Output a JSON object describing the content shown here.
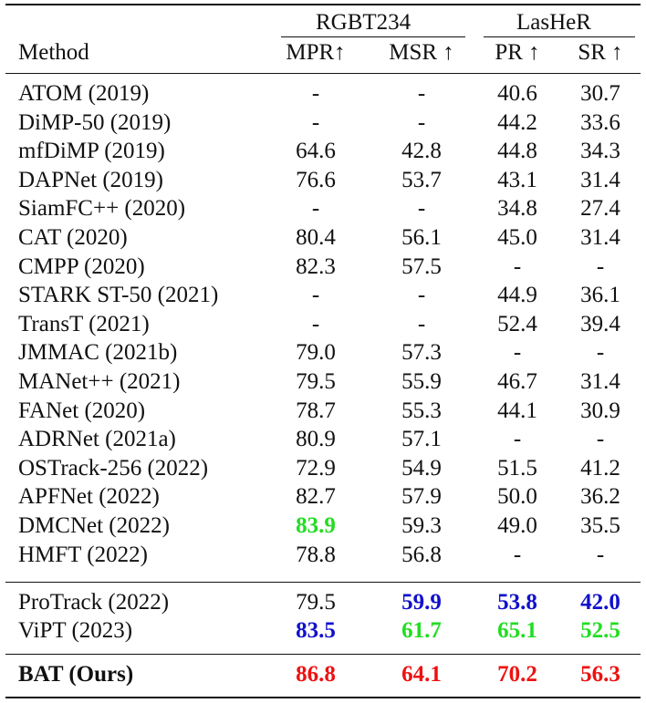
{
  "colors": {
    "red": "#ee1111",
    "green": "#22dd22",
    "blue": "#1111cc",
    "black": "#111111"
  },
  "header": {
    "method_label": "Method",
    "group_rgbt": "RGBT234",
    "group_lasher": "LasHeR",
    "col_mpr": "MPR↑",
    "col_msr": "MSR ↑",
    "col_pr": "PR ↑",
    "col_sr": "SR ↑"
  },
  "rows": [
    {
      "method": "ATOM (2019)",
      "mpr": "-",
      "msr": "-",
      "pr": "40.6",
      "sr": "30.7"
    },
    {
      "method": "DiMP-50 (2019)",
      "mpr": "-",
      "msr": "-",
      "pr": "44.2",
      "sr": "33.6"
    },
    {
      "method": "mfDiMP (2019)",
      "mpr": "64.6",
      "msr": "42.8",
      "pr": "44.8",
      "sr": "34.3"
    },
    {
      "method": "DAPNet (2019)",
      "mpr": "76.6",
      "msr": "53.7",
      "pr": "43.1",
      "sr": "31.4"
    },
    {
      "method": "SiamFC++ (2020)",
      "mpr": "-",
      "msr": "-",
      "pr": "34.8",
      "sr": "27.4"
    },
    {
      "method": "CAT (2020)",
      "mpr": "80.4",
      "msr": "56.1",
      "pr": "45.0",
      "sr": "31.4"
    },
    {
      "method": "CMPP (2020)",
      "mpr": "82.3",
      "msr": "57.5",
      "pr": "-",
      "sr": "-"
    },
    {
      "method": "STARK ST-50 (2021)",
      "mpr": "-",
      "msr": "-",
      "pr": "44.9",
      "sr": "36.1"
    },
    {
      "method": "TransT (2021)",
      "mpr": "-",
      "msr": "-",
      "pr": "52.4",
      "sr": "39.4"
    },
    {
      "method": "JMMAC (2021b)",
      "mpr": "79.0",
      "msr": "57.3",
      "pr": "-",
      "sr": "-"
    },
    {
      "method": "MANet++ (2021)",
      "mpr": "79.5",
      "msr": "55.9",
      "pr": "46.7",
      "sr": "31.4"
    },
    {
      "method": "FANet (2020)",
      "mpr": "78.7",
      "msr": "55.3",
      "pr": "44.1",
      "sr": "30.9"
    },
    {
      "method": "ADRNet (2021a)",
      "mpr": "80.9",
      "msr": "57.1",
      "pr": "-",
      "sr": "-"
    },
    {
      "method": "OSTrack-256 (2022)",
      "mpr": "72.9",
      "msr": "54.9",
      "pr": "51.5",
      "sr": "41.2"
    },
    {
      "method": "APFNet (2022)",
      "mpr": "82.7",
      "msr": "57.9",
      "pr": "50.0",
      "sr": "36.2"
    },
    {
      "method": "DMCNet (2022)",
      "mpr": "83.9",
      "msr": "59.3",
      "pr": "49.0",
      "sr": "35.5",
      "mpr_style": "green"
    },
    {
      "method": "HMFT (2022)",
      "mpr": "78.8",
      "msr": "56.8",
      "pr": "-",
      "sr": "-"
    }
  ],
  "prompt_rows": [
    {
      "method": "ProTrack (2022)",
      "mpr": "79.5",
      "msr": "59.9",
      "pr": "53.8",
      "sr": "42.0",
      "msr_style": "blue",
      "pr_style": "blue",
      "sr_style": "blue"
    },
    {
      "method": "ViPT (2023)",
      "mpr": "83.5",
      "msr": "61.7",
      "pr": "65.1",
      "sr": "52.5",
      "mpr_style": "blue",
      "msr_style": "green",
      "pr_style": "green",
      "sr_style": "green"
    }
  ],
  "ours_row": {
    "method": "BAT (Ours)",
    "mpr": "86.8",
    "msr": "64.1",
    "pr": "70.2",
    "sr": "56.3",
    "mpr_style": "red",
    "msr_style": "red",
    "pr_style": "red",
    "sr_style": "red"
  }
}
